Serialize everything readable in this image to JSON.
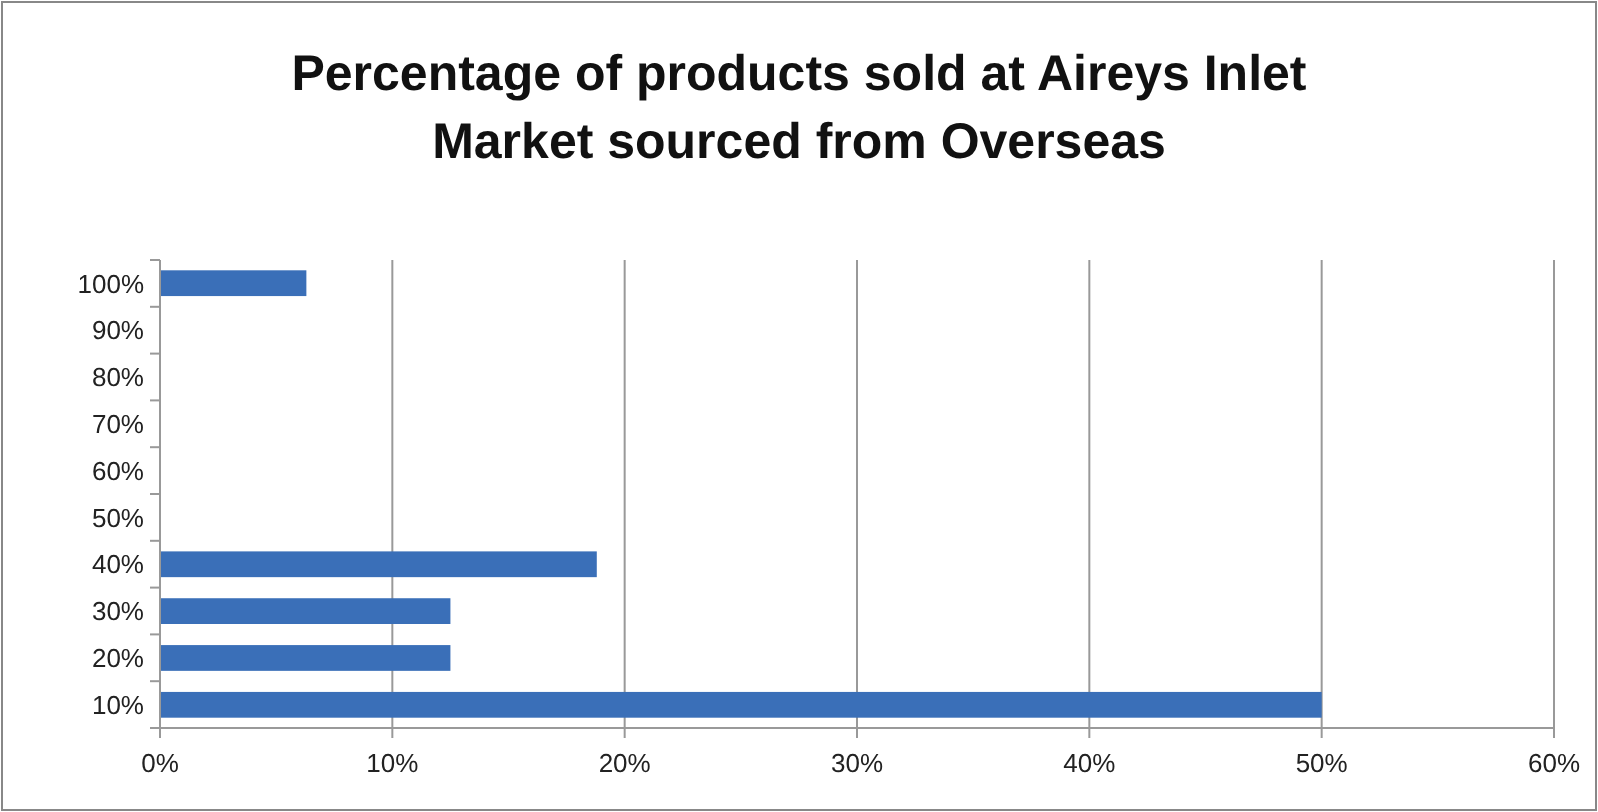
{
  "chart_data": {
    "type": "bar",
    "orientation": "horizontal",
    "title": "Percentage of products sold at Aireys Inlet Market sourced from Overseas",
    "categories": [
      "100%",
      "90%",
      "80%",
      "70%",
      "60%",
      "50%",
      "40%",
      "30%",
      "20%",
      "10%"
    ],
    "values": [
      6.3,
      null,
      null,
      null,
      null,
      null,
      18.8,
      12.5,
      12.5,
      50
    ],
    "color": "#3a6fb8",
    "xlim": [
      0,
      60
    ],
    "xticks": [
      {
        "value": 0,
        "label": "0%"
      },
      {
        "value": 10,
        "label": "10%"
      },
      {
        "value": 20,
        "label": "20%"
      },
      {
        "value": 30,
        "label": "30%"
      },
      {
        "value": 40,
        "label": "40%"
      },
      {
        "value": 50,
        "label": "50%"
      },
      {
        "value": 60,
        "label": "60%"
      }
    ],
    "grid": "x"
  }
}
